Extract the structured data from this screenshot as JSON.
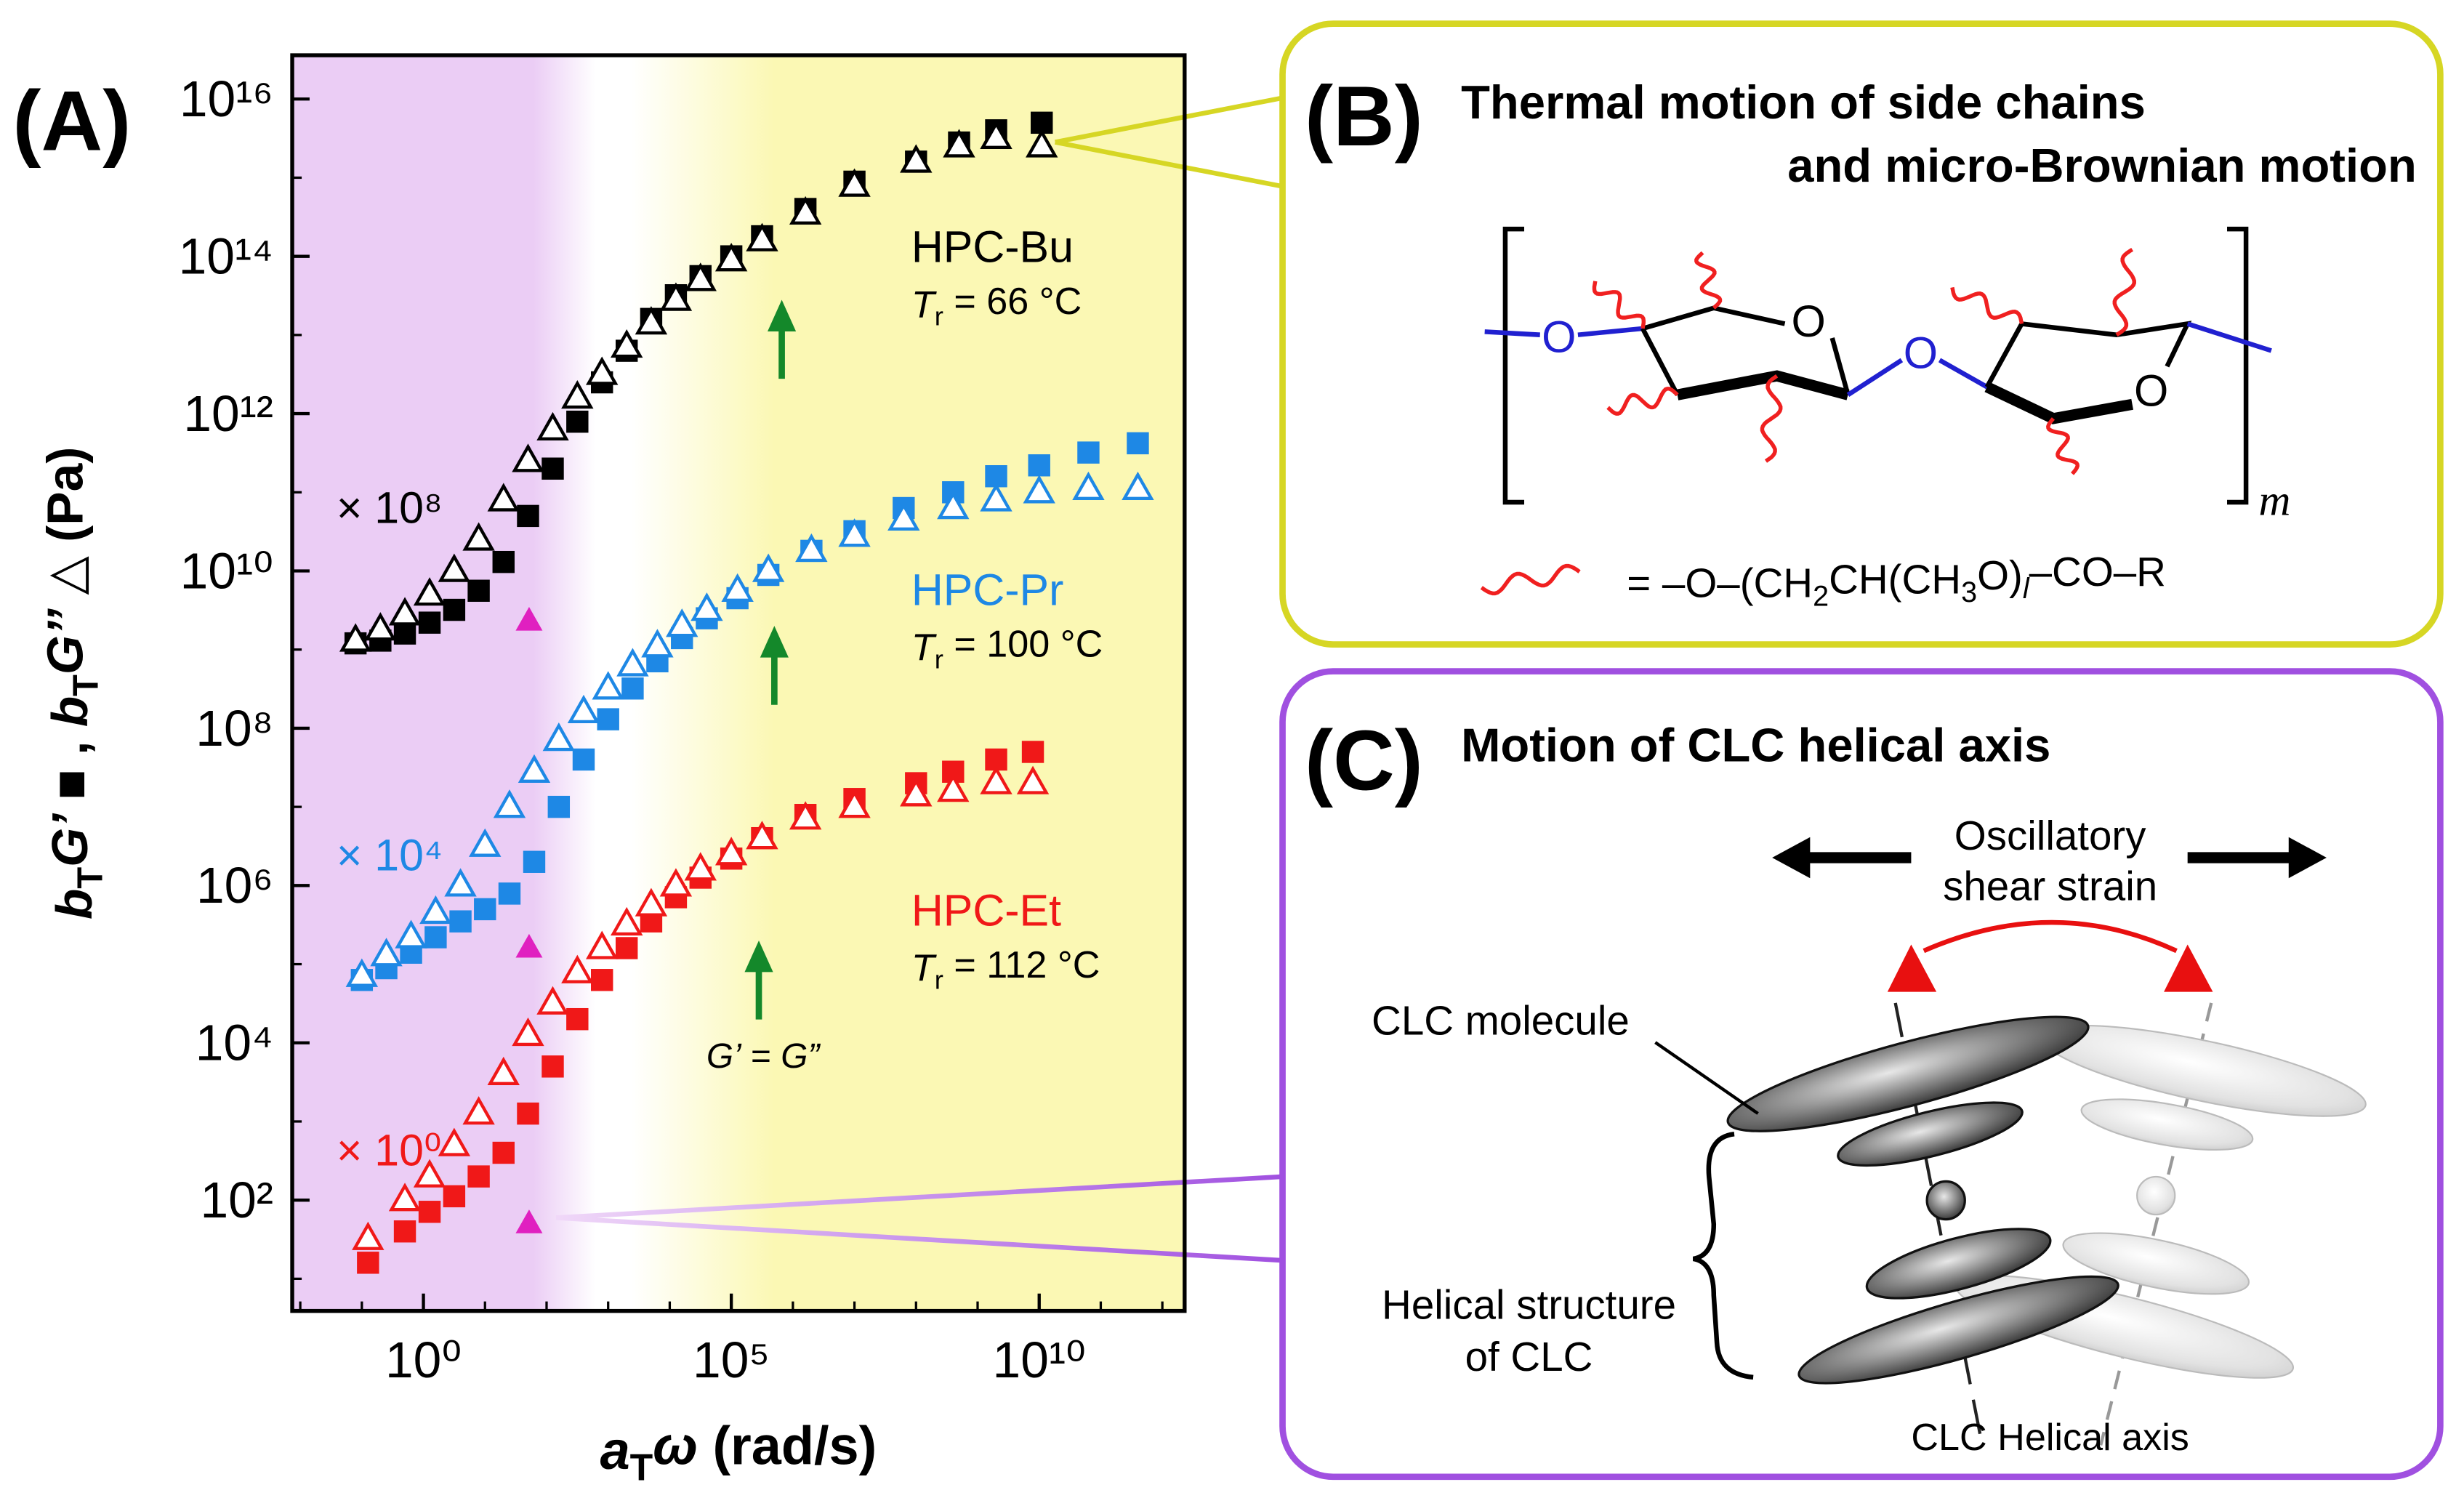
{
  "panel_a": {
    "label": "(A)"
  },
  "chart_data": {
    "type": "scatter",
    "xlabel": [
      {
        "t": "a",
        "s": "i"
      },
      {
        "t": "T",
        "s": "sub"
      },
      {
        "t": "ω",
        "s": "i"
      },
      {
        "t": "  (rad/s)",
        "s": ""
      }
    ],
    "ylabel": [
      {
        "t": "b",
        "s": "i"
      },
      {
        "t": "T",
        "s": "sub"
      },
      {
        "t": "G’",
        "s": "i"
      },
      {
        "t": " ■ , ",
        "s": ""
      },
      {
        "t": "b",
        "s": "i"
      },
      {
        "t": "T",
        "s": "sub"
      },
      {
        "t": "G’’",
        "s": "i"
      },
      {
        "t": " △  (Pa)",
        "s": ""
      }
    ],
    "xscale": "log",
    "yscale": "log",
    "xlim": [
      0.0074,
      2300000000000.0
    ],
    "ylim": [
      3.9,
      3.6e+16
    ],
    "xticks": [
      {
        "value": 1,
        "label": "10⁰"
      },
      {
        "value": 100000.0,
        "label": "10⁵"
      },
      {
        "value": 10000000000.0,
        "label": "10¹⁰"
      }
    ],
    "yticks": [
      {
        "value": 100,
        "label": "10²"
      },
      {
        "value": 10000.0,
        "label": "10⁴"
      },
      {
        "value": 1000000.0,
        "label": "10⁶"
      },
      {
        "value": 100000000.0,
        "label": "10⁸"
      },
      {
        "value": 10000000000.0,
        "label": "10¹⁰"
      },
      {
        "value": 1000000000000.0,
        "label": "10¹²"
      },
      {
        "value": 100000000000000.0,
        "label": "10¹⁴"
      },
      {
        "value": 1e+16,
        "label": "10¹⁶"
      }
    ],
    "xminorticks": [
      0.01,
      0.1,
      10,
      100,
      1000,
      10000.0,
      1000000.0,
      10000000.0,
      100000000.0,
      1000000000.0,
      100000000000.0,
      1000000000000.0
    ],
    "yminorticks": [
      10,
      1000,
      100000.0,
      10000000.0,
      1000000000.0,
      100000000000.0,
      10000000000000.0,
      1000000000000000.0
    ],
    "series": [
      {
        "color": "#000000",
        "marker": "square",
        "x": [
          0.079,
          0.2,
          0.5,
          1.26,
          3.16,
          7.9,
          20,
          50,
          126,
          316,
          794,
          2000,
          5000,
          12600,
          31600,
          100000.0,
          316000.0,
          1600000.0,
          10000000.0,
          100000000.0,
          500000000.0,
          2000000000.0,
          11000000000.0
        ],
        "values": [
          1200000000.0,
          1300000000.0,
          1600000000.0,
          2200000000.0,
          3200000000.0,
          5600000000.0,
          13000000000.0,
          50000000000.0,
          200000000000.0,
          790000000000.0,
          2500000000000.0,
          6300000000000.0,
          16000000000000.0,
          32000000000000.0,
          56000000000000.0,
          100000000000000.0,
          180000000000000.0,
          400000000000000.0,
          890000000000000.0,
          1600000000000000.0,
          2800000000000000.0,
          4000000000000000.0,
          5000000000000000.0
        ]
      },
      {
        "color": "#000000",
        "marker": "triangle-open",
        "x": [
          0.079,
          0.2,
          0.5,
          1.26,
          3.16,
          7.9,
          20,
          50,
          126,
          316,
          794,
          2000,
          5000,
          12600,
          31600,
          100000.0,
          316000.0,
          1600000.0,
          10000000.0,
          100000000.0,
          500000000.0,
          2000000000.0,
          11000000000.0
        ],
        "values": [
          1300000000.0,
          1800000000.0,
          2800000000.0,
          5000000000.0,
          10000000000.0,
          25000000000.0,
          79000000000.0,
          250000000000.0,
          630000000000.0,
          1600000000000.0,
          3200000000000.0,
          7100000000000.0,
          14000000000000.0,
          28000000000000.0,
          50000000000000.0,
          89000000000000.0,
          160000000000000.0,
          350000000000000.0,
          790000000000000.0,
          1600000000000000.0,
          2500000000000000.0,
          3200000000000000.0,
          2500000000000000.0
        ]
      },
      {
        "color": "#1e88e5",
        "marker": "square",
        "x": [
          0.1,
          0.25,
          0.63,
          1.58,
          4,
          10,
          25,
          63,
          158,
          400,
          1000,
          2500,
          6300,
          15800,
          40000,
          126000.0,
          400000.0,
          2000000.0,
          10000000.0,
          63000000.0,
          400000000.0,
          2000000000.0,
          10000000000.0,
          63000000000.0,
          400000000000.0
        ],
        "values": [
          63000.0,
          89000.0,
          140000.0,
          220000.0,
          350000.0,
          500000.0,
          790000.0,
          2000000.0,
          10000000.0,
          40000000.0,
          130000000.0,
          320000000.0,
          710000000.0,
          1400000000.0,
          2500000000.0,
          4500000000.0,
          8900000000.0,
          18000000000.0,
          32000000000.0,
          63000000000.0,
          100000000000.0,
          160000000000.0,
          220000000000.0,
          320000000000.0,
          420000000000.0
        ]
      },
      {
        "color": "#1e88e5",
        "marker": "triangle-open",
        "x": [
          0.1,
          0.25,
          0.63,
          1.58,
          4,
          10,
          25,
          63,
          158,
          400,
          1000,
          2500,
          6300,
          15800,
          40000,
          126000.0,
          400000.0,
          2000000.0,
          10000000.0,
          63000000.0,
          400000000.0,
          2000000000.0,
          10000000000.0,
          63000000000.0,
          400000000000.0
        ],
        "values": [
          71000.0,
          130000.0,
          220000.0,
          450000.0,
          1000000.0,
          3200000.0,
          10000000.0,
          28000000.0,
          71000000.0,
          160000000.0,
          320000000.0,
          630000000.0,
          1100000000.0,
          2000000000.0,
          3200000000.0,
          5600000000.0,
          10000000000.0,
          18000000000.0,
          28000000000.0,
          45000000000.0,
          63000000000.0,
          79000000000.0,
          100000000000.0,
          110000000000.0,
          110000000000.0
        ]
      },
      {
        "color": "#f01818",
        "marker": "square",
        "x": [
          0.126,
          0.5,
          1.26,
          3.16,
          7.9,
          20,
          50,
          126,
          316,
          794,
          2000,
          5000,
          12600,
          31600,
          100000.0,
          316000.0,
          1600000.0,
          10000000.0,
          100000000.0,
          400000000.0,
          2000000000.0,
          7900000000.0
        ],
        "values": [
          16,
          40,
          71,
          112,
          200,
          400,
          1260,
          5000,
          20000,
          63000,
          160000.0,
          350000.0,
          710000.0,
          1260000.0,
          2200000.0,
          4000000.0,
          7900000.0,
          12600000.0,
          20000000.0,
          28000000.0,
          40000000.0,
          50000000.0
        ]
      },
      {
        "color": "#f01818",
        "marker": "triangle-open",
        "x": [
          0.126,
          0.5,
          1.26,
          3.16,
          7.9,
          20,
          50,
          126,
          316,
          794,
          2000,
          5000,
          12600,
          31600,
          100000.0,
          316000.0,
          1600000.0,
          10000000.0,
          100000000.0,
          400000000.0,
          2000000000.0,
          7900000000.0
        ],
        "values": [
          32,
          100,
          200,
          500,
          1260,
          4000,
          12600,
          31600,
          79000,
          160000.0,
          320000.0,
          560000.0,
          1000000.0,
          1600000.0,
          2500000.0,
          4000000.0,
          7100000.0,
          10000000.0,
          14000000.0,
          16000000.0,
          20000000.0,
          20000000.0
        ]
      },
      {
        "color": "#e020c0",
        "marker": "triangle",
        "x": [
          52,
          52,
          52
        ],
        "values": [
          2300000000.0,
          160000.0,
          50
        ]
      }
    ],
    "arrows": {
      "color": "#14882a",
      "x": [
        660000.0,
        500000.0,
        280000.0
      ],
      "values": [
        28000000000000.0,
        2000000000.0,
        200000.0
      ]
    },
    "samples": [
      {
        "name": "HPC-Bu",
        "color": "#000000",
        "factor": "× 10⁸",
        "tr": [
          {
            "t": "T",
            "s": "i"
          },
          {
            "t": "r",
            "s": "sub"
          },
          {
            "t": " = 66 °C",
            "s": ""
          }
        ]
      },
      {
        "name": "HPC-Pr",
        "color": "#1e88e5",
        "factor": "× 10⁴",
        "tr": [
          {
            "t": "T",
            "s": "i"
          },
          {
            "t": "r",
            "s": "sub"
          },
          {
            "t": " = 100 °C",
            "s": ""
          }
        ]
      },
      {
        "name": "HPC-Et",
        "color": "#f01818",
        "factor": "× 10⁰",
        "tr": [
          {
            "t": "T",
            "s": "i"
          },
          {
            "t": "r",
            "s": "sub"
          },
          {
            "t": " = 112 °C",
            "s": ""
          }
        ]
      }
    ],
    "crossover_label": [
      {
        "t": "G’",
        "s": "i"
      },
      {
        "t": " = ",
        "s": ""
      },
      {
        "t": "G”",
        "s": "i"
      }
    ]
  },
  "panel_b": {
    "label": "(B)",
    "title": [
      "Thermal motion of side chains",
      "and micro-Brownian motion"
    ],
    "atoms": [
      "O",
      "O",
      "O",
      "O"
    ],
    "repeat": "m",
    "formula": [
      {
        "t": "=  –O–(CH",
        "s": ""
      },
      {
        "t": "2",
        "s": "sub"
      },
      {
        "t": "CH(CH",
        "s": ""
      },
      {
        "t": "3",
        "s": "sub"
      },
      {
        "t": "O)",
        "s": ""
      },
      {
        "t": "l",
        "s": "isub"
      },
      {
        "t": "–CO–R",
        "s": ""
      }
    ]
  },
  "panel_c": {
    "label": "(C)",
    "title": "Motion of CLC helical axis",
    "strain": [
      "Oscillatory",
      "shear strain"
    ],
    "molecule": "CLC molecule",
    "helix": [
      "Helical structure",
      "of CLC"
    ],
    "axis": "CLC Helical axis"
  }
}
